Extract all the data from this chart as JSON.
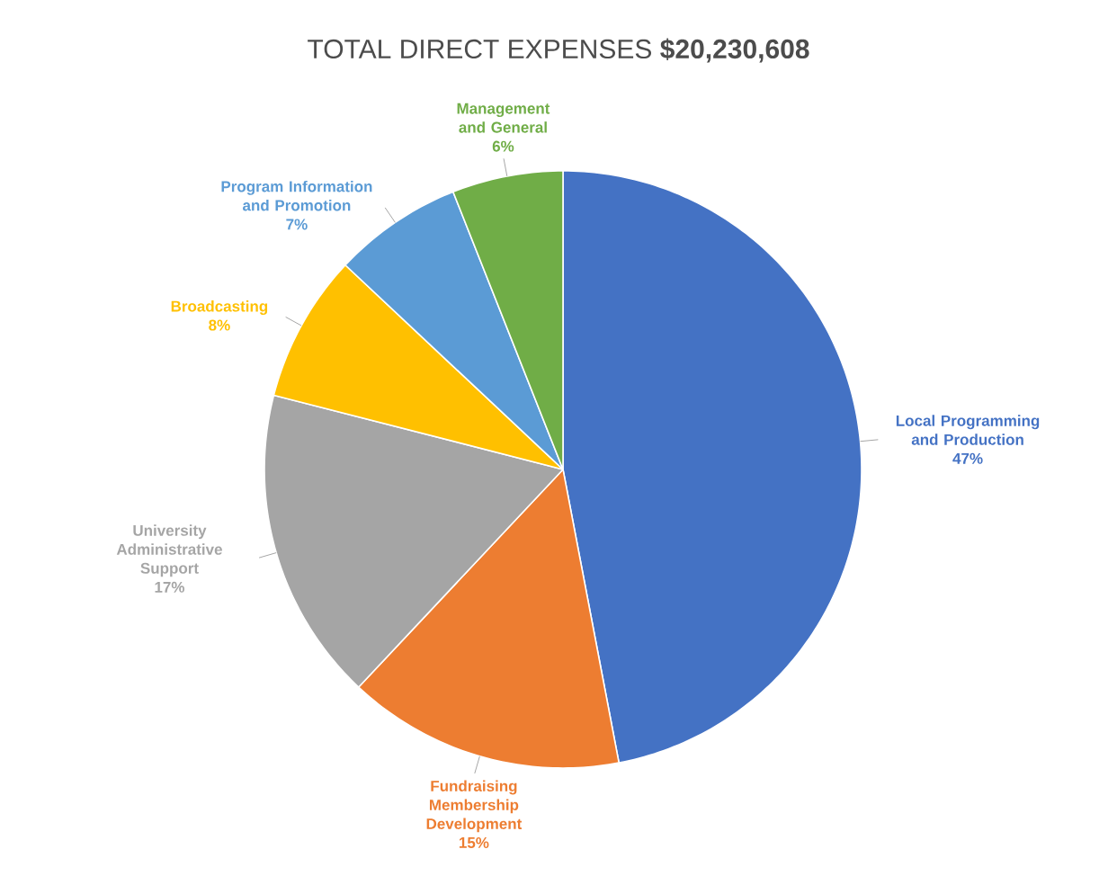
{
  "chart_data": {
    "type": "pie",
    "title": "TOTAL DIRECT EXPENSES **$20,230,608**",
    "categories": [
      "Local Programming and Production",
      "Fundraising Membership Development",
      "University Administrative Support",
      "Broadcasting",
      "Program Information and Promotion",
      "Management and General"
    ],
    "values": [
      47,
      15,
      17,
      8,
      7,
      6
    ],
    "value_labels": [
      "47%",
      "15%",
      "17%",
      "8%",
      "7%",
      "6%"
    ],
    "colors": [
      "#4472c4",
      "#ed7d31",
      "#a5a5a5",
      "#ffc000",
      "#5b9bd5",
      "#70ad47"
    ]
  }
}
